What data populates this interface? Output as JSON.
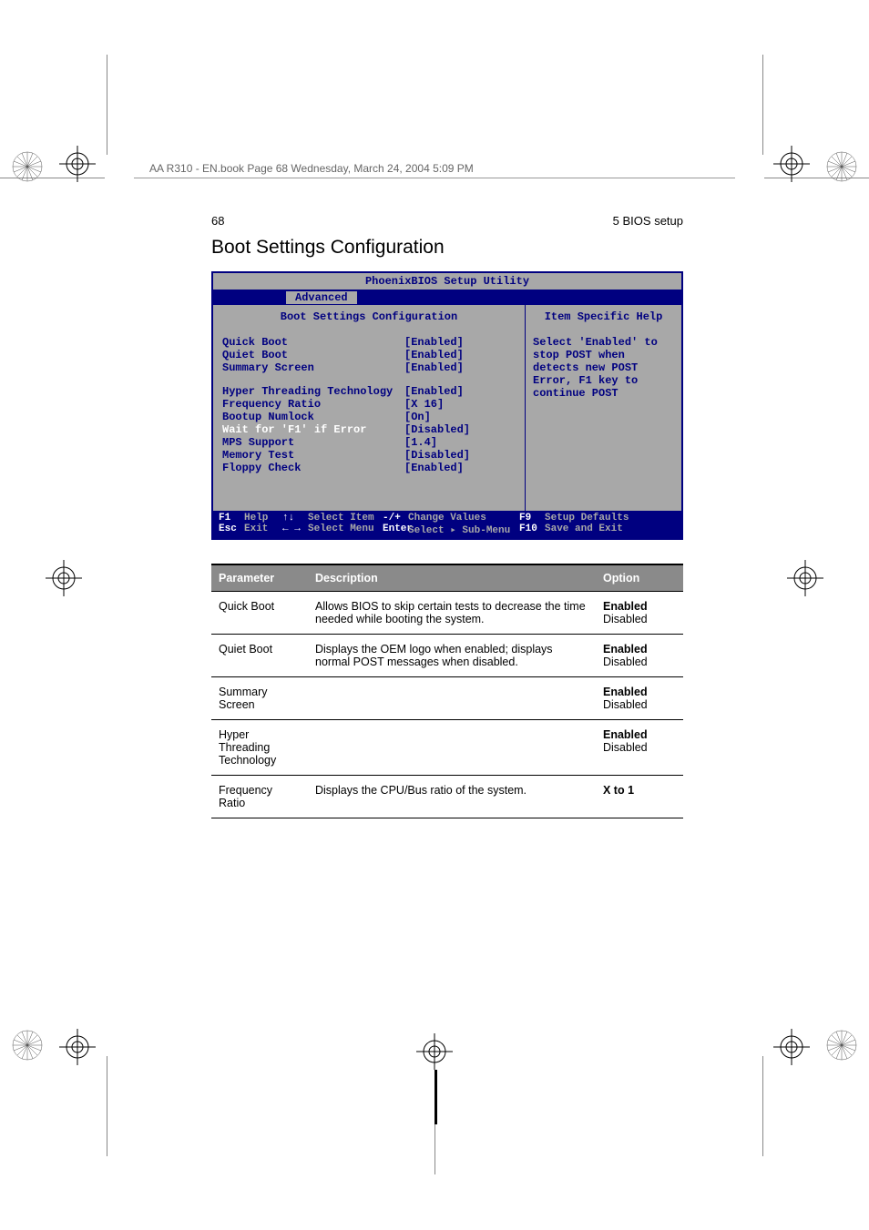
{
  "book_header": "AA R310 - EN.book  Page 68  Wednesday, March 24, 2004  5:09 PM",
  "page_number": "68",
  "chapter": "5 BIOS setup",
  "section_title": "Boot Settings Configuration",
  "bios": {
    "title": "PhoenixBIOS Setup Utility",
    "tab": "Advanced",
    "panel_title": "Boot Settings Configuration",
    "help_title": "Item Specific Help",
    "help_text": "Select 'Enabled' to stop POST when detects new POST Error, F1 key to continue POST",
    "rows_group1": [
      {
        "label": "Quick Boot",
        "value": "[Enabled]"
      },
      {
        "label": "Quiet Boot",
        "value": "[Enabled]"
      },
      {
        "label": "Summary Screen",
        "value": "[Enabled]"
      }
    ],
    "rows_group2": [
      {
        "label": "Hyper Threading Technology",
        "value": "[Enabled]"
      },
      {
        "label": "Frequency Ratio",
        "value": "[X 16]"
      },
      {
        "label": "Bootup Numlock",
        "value": "[On]"
      },
      {
        "label": "Wait for 'F1' if Error",
        "value": "[Disabled]",
        "selected": true
      },
      {
        "label": "MPS Support",
        "value": "[1.4]"
      },
      {
        "label": "Memory Test",
        "value": "[Disabled]"
      },
      {
        "label": "Floppy Check",
        "value": "[Enabled]"
      }
    ],
    "footer": {
      "row1": [
        {
          "key": "F1",
          "text": "Help"
        },
        {
          "key": "↑↓",
          "text": "Select Item"
        },
        {
          "key": "-/+",
          "text": "Change Values"
        },
        {
          "key": "F9",
          "text": "Setup Defaults"
        }
      ],
      "row2": [
        {
          "key": "Esc",
          "text": "Exit"
        },
        {
          "key": "←  →",
          "text": "Select Menu"
        },
        {
          "key": "Enter",
          "text": "Select ▸ Sub-Menu"
        },
        {
          "key": "F10",
          "text": "Save and Exit"
        }
      ]
    }
  },
  "table": {
    "headers": [
      "Parameter",
      "Description",
      "Option"
    ],
    "rows": [
      {
        "param": "Quick Boot",
        "desc": "Allows BIOS to skip certain tests to decrease the time needed while booting the system.",
        "opt_bold": "Enabled",
        "opt_rest": "Disabled"
      },
      {
        "param": "Quiet Boot",
        "desc": "Displays the OEM logo when enabled; displays normal POST messages when disabled.",
        "opt_bold": "Enabled",
        "opt_rest": "Disabled"
      },
      {
        "param": "Summary Screen",
        "desc": "",
        "opt_bold": "Enabled",
        "opt_rest": "Disabled"
      },
      {
        "param": "Hyper Threading Technology",
        "desc": "",
        "opt_bold": "Enabled",
        "opt_rest": "Disabled"
      },
      {
        "param": "Frequency Ratio",
        "desc": "Displays the CPU/Bus ratio of the system.",
        "opt_bold": "X to 1",
        "opt_rest": ""
      }
    ]
  },
  "colors": {
    "bios_blue": "#000080",
    "bios_gray": "#a8a8a8",
    "table_header_bg": "#8a8a8a"
  }
}
